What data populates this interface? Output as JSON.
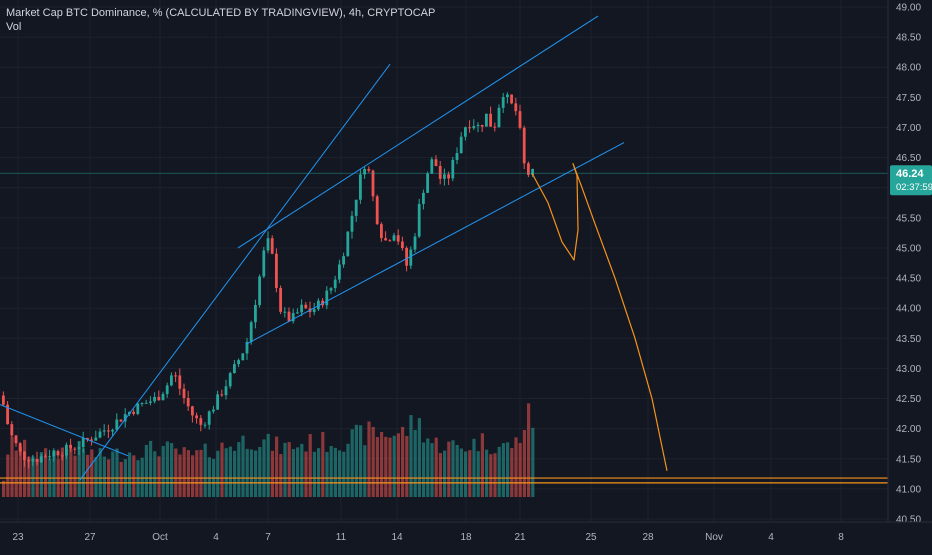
{
  "chart_data": {
    "type": "candlestick",
    "title": "Market Cap BTC Dominance, % (CALCULATED BY TRADINGVIEW), 4h, CRYPTOCAP",
    "indicator": "Vol",
    "ylim": [
      40.5,
      49.0
    ],
    "y_ticks": [
      "49.00",
      "48.50",
      "48.00",
      "47.50",
      "47.00",
      "46.50",
      "46.00",
      "45.50",
      "45.00",
      "44.50",
      "44.00",
      "43.50",
      "43.00",
      "42.50",
      "42.00",
      "41.50",
      "41.00",
      "40.50"
    ],
    "x_ticks": [
      "23",
      "27",
      "Oct",
      "4",
      "7",
      "11",
      "14",
      "18",
      "21",
      "25",
      "28",
      "Nov",
      "4",
      "8"
    ],
    "last_price": "46.24",
    "countdown": "02:37:59",
    "colors": {
      "up": "#26a69a",
      "down": "#ef5350",
      "trendline": "#2196f3",
      "projection": "#f7931a",
      "support": "#f7931a",
      "background": "#131722"
    },
    "price_path": [
      [
        0,
        42.55
      ],
      [
        8,
        41.95
      ],
      [
        20,
        41.55
      ],
      [
        35,
        41.5
      ],
      [
        50,
        41.6
      ],
      [
        65,
        41.65
      ],
      [
        80,
        41.75
      ],
      [
        95,
        41.9
      ],
      [
        110,
        42.05
      ],
      [
        125,
        42.25
      ],
      [
        140,
        42.4
      ],
      [
        155,
        42.5
      ],
      [
        165,
        42.7
      ],
      [
        172,
        42.95
      ],
      [
        180,
        42.6
      ],
      [
        190,
        42.25
      ],
      [
        200,
        42.05
      ],
      [
        215,
        42.45
      ],
      [
        230,
        42.9
      ],
      [
        245,
        43.4
      ],
      [
        255,
        44.2
      ],
      [
        262,
        44.9
      ],
      [
        268,
        45.15
      ],
      [
        275,
        44.4
      ],
      [
        280,
        43.9
      ],
      [
        290,
        43.8
      ],
      [
        300,
        44.0
      ],
      [
        310,
        43.95
      ],
      [
        320,
        44.1
      ],
      [
        330,
        44.35
      ],
      [
        340,
        44.8
      ],
      [
        350,
        45.5
      ],
      [
        358,
        46.1
      ],
      [
        365,
        46.5
      ],
      [
        372,
        45.8
      ],
      [
        378,
        45.3
      ],
      [
        385,
        45.1
      ],
      [
        392,
        45.3
      ],
      [
        398,
        45.1
      ],
      [
        405,
        44.7
      ],
      [
        412,
        45.1
      ],
      [
        418,
        45.7
      ],
      [
        425,
        46.2
      ],
      [
        432,
        46.5
      ],
      [
        440,
        46.1
      ],
      [
        448,
        46.2
      ],
      [
        455,
        46.6
      ],
      [
        462,
        47.0
      ],
      [
        470,
        47.1
      ],
      [
        478,
        47.0
      ],
      [
        485,
        47.2
      ],
      [
        492,
        46.95
      ],
      [
        498,
        47.4
      ],
      [
        502,
        47.6
      ],
      [
        508,
        47.4
      ],
      [
        514,
        47.3
      ],
      [
        518,
        47.0
      ],
      [
        522,
        46.4
      ],
      [
        528,
        46.2
      ],
      [
        532,
        46.24
      ]
    ],
    "volume_path": [
      [
        0,
        0.1
      ],
      [
        10,
        0.6
      ],
      [
        40,
        0.45
      ],
      [
        70,
        0.55
      ],
      [
        100,
        0.45
      ],
      [
        130,
        0.5
      ],
      [
        160,
        0.55
      ],
      [
        190,
        0.45
      ],
      [
        220,
        0.55
      ],
      [
        250,
        0.65
      ],
      [
        280,
        0.55
      ],
      [
        310,
        0.6
      ],
      [
        340,
        0.62
      ],
      [
        370,
        0.72
      ],
      [
        400,
        0.7
      ],
      [
        415,
        0.85
      ],
      [
        430,
        0.6
      ],
      [
        460,
        0.55
      ],
      [
        480,
        0.62
      ],
      [
        500,
        0.55
      ],
      [
        515,
        0.6
      ],
      [
        525,
        0.85
      ],
      [
        530,
        0.95
      ],
      [
        536,
        0.35
      ]
    ],
    "trendlines": [
      {
        "name": "channel-upper",
        "points": [
          [
            238,
            45.0
          ],
          [
            598,
            48.85
          ]
        ]
      },
      {
        "name": "channel-lower",
        "points": [
          [
            246,
            43.4
          ],
          [
            624,
            46.75
          ]
        ]
      },
      {
        "name": "steep-trendline",
        "points": [
          [
            80,
            41.15
          ],
          [
            390,
            48.05
          ]
        ]
      },
      {
        "name": "early-downtrend",
        "points": [
          [
            0,
            42.4
          ],
          [
            128,
            41.55
          ]
        ]
      }
    ],
    "projection_path": [
      [
        532,
        46.24
      ],
      [
        548,
        45.75
      ],
      [
        562,
        45.1
      ],
      [
        574,
        44.8
      ],
      [
        578,
        45.3
      ],
      [
        577,
        46.2
      ],
      [
        573,
        46.4
      ],
      [
        582,
        46.0
      ],
      [
        595,
        45.4
      ],
      [
        615,
        44.5
      ],
      [
        635,
        43.5
      ],
      [
        652,
        42.5
      ],
      [
        667,
        41.3
      ]
    ],
    "support_lines": [
      41.18,
      41.1
    ],
    "reference_line": 46.24
  }
}
